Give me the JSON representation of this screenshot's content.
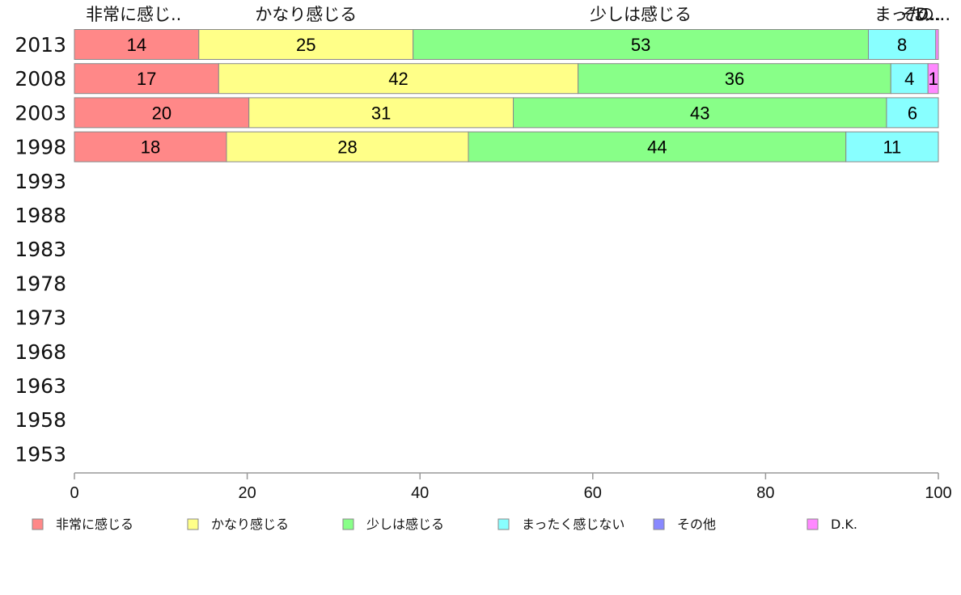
{
  "chart_data": {
    "type": "bar",
    "orientation": "horizontal",
    "stacked": true,
    "categories": [
      "2013",
      "2008",
      "2003",
      "1998",
      "1993",
      "1988",
      "1983",
      "1978",
      "1973",
      "1968",
      "1963",
      "1958",
      "1953"
    ],
    "series": [
      {
        "name": "非常に感じる",
        "short_label": "非常に感じ..",
        "color": "#ff8888",
        "values": [
          14.4,
          16.7,
          20.2,
          17.6,
          null,
          null,
          null,
          null,
          null,
          null,
          null,
          null,
          null
        ]
      },
      {
        "name": "かなり感じる",
        "short_label": "かなり感じる",
        "color": "#ffff88",
        "values": [
          24.8,
          41.6,
          30.6,
          28.0,
          null,
          null,
          null,
          null,
          null,
          null,
          null,
          null,
          null
        ]
      },
      {
        "name": "少しは感じる",
        "short_label": "少しは感じる",
        "color": "#88ff88",
        "values": [
          52.7,
          36.2,
          43.2,
          43.7,
          null,
          null,
          null,
          null,
          null,
          null,
          null,
          null,
          null
        ]
      },
      {
        "name": "まったく感じない",
        "short_label": "まった...",
        "color": "#88ffff",
        "values": [
          7.8,
          4.3,
          6.0,
          10.7,
          null,
          null,
          null,
          null,
          null,
          null,
          null,
          null,
          null
        ]
      },
      {
        "name": "その他",
        "short_label": "その...",
        "color": "#8888ff",
        "values": [
          0,
          0,
          0,
          0,
          null,
          null,
          null,
          null,
          null,
          null,
          null,
          null,
          null
        ]
      },
      {
        "name": "D.K.",
        "short_label": "D...",
        "color": "#ff88ff",
        "values": [
          0.3,
          1.2,
          0,
          0,
          null,
          null,
          null,
          null,
          null,
          null,
          null,
          null,
          null
        ]
      }
    ],
    "data_labels": [
      [
        "14",
        "25",
        "53",
        "8",
        "",
        ""
      ],
      [
        "17",
        "42",
        "36",
        "4",
        "",
        "1"
      ],
      [
        "20",
        "31",
        "43",
        "6",
        "",
        ""
      ],
      [
        "18",
        "28",
        "44",
        "11",
        "",
        ""
      ]
    ],
    "xlim": [
      0,
      100
    ],
    "x_ticks": [
      "0",
      "20",
      "40",
      "60",
      "80",
      "100"
    ],
    "legend_position": "bottom",
    "grid": false,
    "colors": {
      "border": "#888888",
      "axis": "#999999"
    }
  }
}
